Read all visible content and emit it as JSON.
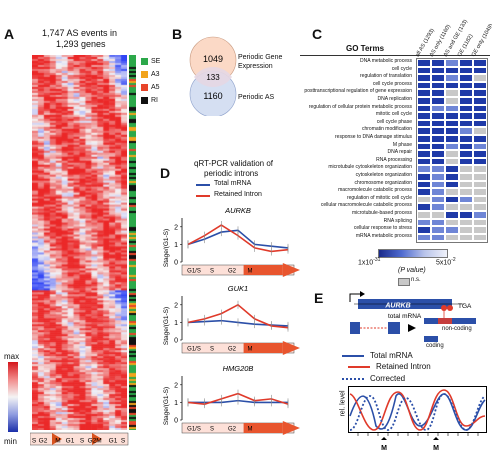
{
  "panel_a": {
    "label": "A",
    "title_line1": "1,747 AS events in",
    "title_line2": "1,293 genes",
    "legend": [
      {
        "label": "SE",
        "color": "#2ca84a"
      },
      {
        "label": "A3",
        "color": "#f2a41c"
      },
      {
        "label": "A5",
        "color": "#e8452a"
      },
      {
        "label": "RI",
        "color": "#111111"
      }
    ],
    "scale_max": "max",
    "scale_min": "min",
    "phase_labels": [
      "S",
      "G2",
      "M",
      "G1",
      "S",
      "G2",
      "M",
      "G1",
      "S"
    ]
  },
  "panel_b": {
    "label": "B",
    "venn_top": "1049",
    "venn_overlap": "133",
    "venn_bottom": "1160",
    "set1_line1": "Periodic Gene",
    "set1_line2": "Expression",
    "set2": "Periodic  AS"
  },
  "panel_c": {
    "label": "C",
    "header": "GO Terms",
    "columns": [
      "all AS (1293)",
      "AS only (1160)",
      "AS and GE (133)",
      "GE (1182)",
      "GE only (1049)"
    ],
    "terms": [
      "DNA metabolic process",
      "cell cycle",
      "regulation of translation",
      "cell cycle process",
      "posttranscriptional regulation of gene expression",
      "DNA replication",
      "regulation of cellular protein metabolic process",
      "mitotic cell cycle",
      "cell cycle phase",
      "chromatin modification",
      "response to DNA damage stimulus",
      "M phase",
      "DNA repair",
      "RNA processing",
      "microtubule cytoskeleton organization",
      "cytoskeleton organization",
      "chromosome organization",
      "macromolecule catabolic process",
      "regulation of mitotic cell cycle",
      "cellular macromolecule catabolic process",
      "microtubule-based process",
      "RNA splicing",
      "cellular response to stress",
      "mRNA metabolic process"
    ],
    "scale_low": "1x10",
    "scale_low_exp": "-31",
    "scale_high": "5x10",
    "scale_high_exp": "-2",
    "scale_caption": "(P value)",
    "ns_label": "n.s.",
    "colors": {
      "strong": "#1f3aa8",
      "ns": "#c8c8c8"
    }
  },
  "panel_d": {
    "label": "D",
    "title_line1": "qRT-PCR validation of",
    "title_line2": "periodic introns",
    "legend_total": "Total mRNA",
    "legend_retained": "Retained Intron",
    "ylabel": "Stage/(G1-S)",
    "phase_bar": [
      "G1/S",
      "S",
      "G2",
      "M"
    ],
    "colors": {
      "total": "#2b4fa8",
      "retained": "#e03a2a"
    },
    "y_ticks_1": [
      "2",
      "1",
      "0"
    ],
    "y_ticks_2": [
      "2",
      "1",
      "0"
    ],
    "y_ticks_3": [
      "2",
      "1",
      "0"
    ]
  },
  "panel_e": {
    "label": "E",
    "gene": "AURKB",
    "total_mrna": "total mRNA",
    "tga": "TGA",
    "non_coding": "non-coding",
    "coding": "coding",
    "legend_total": "Total mRNA",
    "legend_retained": "Retained Intron",
    "legend_corrected": "Corrected",
    "ylabel": "rel. level",
    "marker_1": "M",
    "marker_2": "M"
  },
  "chart_data": [
    {
      "type": "line",
      "title": "AURKB",
      "ylabel": "Stage/(G1-S)",
      "ylim": [
        0,
        2.5
      ],
      "x": [
        1,
        2,
        3,
        4,
        5,
        6,
        7
      ],
      "series": [
        {
          "name": "Total mRNA",
          "values": [
            1.0,
            1.3,
            1.7,
            1.8,
            1.0,
            0.9,
            0.8
          ]
        },
        {
          "name": "Retained Intron",
          "values": [
            1.0,
            1.5,
            2.1,
            1.5,
            0.8,
            0.6,
            0.7
          ]
        }
      ]
    },
    {
      "type": "line",
      "title": "GUK1",
      "ylabel": "Stage/(G1-S)",
      "ylim": [
        0,
        2.5
      ],
      "x": [
        1,
        2,
        3,
        4,
        5,
        6,
        7
      ],
      "series": [
        {
          "name": "Total mRNA",
          "values": [
            1.0,
            1.05,
            1.1,
            1.0,
            0.9,
            0.85,
            0.8
          ]
        },
        {
          "name": "Retained Intron",
          "values": [
            1.0,
            1.2,
            1.5,
            2.0,
            1.2,
            0.8,
            0.7
          ]
        }
      ]
    },
    {
      "type": "line",
      "title": "HMG20B",
      "ylabel": "Stage/(G1-S)",
      "ylim": [
        0,
        2.5
      ],
      "x": [
        1,
        2,
        3,
        4,
        5,
        6,
        7
      ],
      "series": [
        {
          "name": "Total mRNA",
          "values": [
            1.0,
            1.0,
            1.0,
            1.1,
            1.0,
            1.0,
            1.0
          ]
        },
        {
          "name": "Retained Intron",
          "values": [
            1.0,
            0.9,
            1.2,
            1.5,
            1.1,
            1.2,
            0.9
          ]
        }
      ]
    }
  ]
}
